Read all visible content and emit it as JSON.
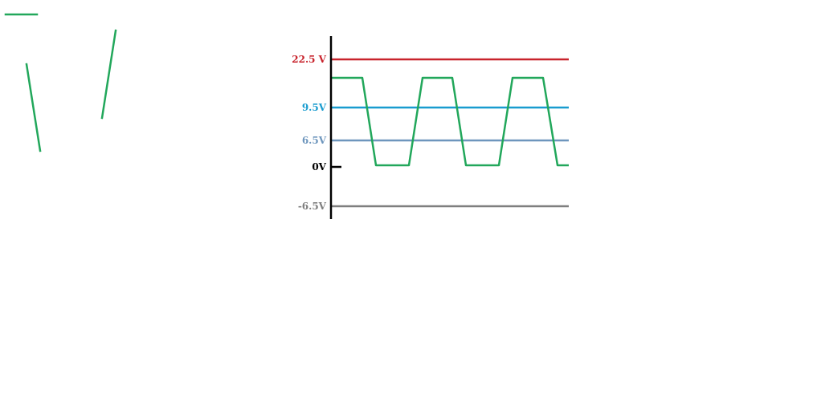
{
  "colors": {
    "background": "#ffffff",
    "axis": "#000000",
    "waveform": "#22a75b"
  },
  "levels": [
    {
      "id": "level-22-5v",
      "label": "22.5 V",
      "value": 22.5,
      "color": "#c8232c"
    },
    {
      "id": "level-9-5v",
      "label": "9.5V",
      "value": 9.5,
      "color": "#199ccf"
    },
    {
      "id": "level-6-5v",
      "label": "6.5V",
      "value": 6.5,
      "color": "#6e96bd"
    },
    {
      "id": "level-0v",
      "label": "0V",
      "value": 0,
      "color": "#000000"
    },
    {
      "id": "level-neg-6-5v",
      "label": "-6.5V",
      "value": -6.5,
      "color": "#7f7f7f"
    }
  ],
  "waveform": {
    "high_value": 17,
    "low_value": 0.5,
    "cycles": 3
  }
}
